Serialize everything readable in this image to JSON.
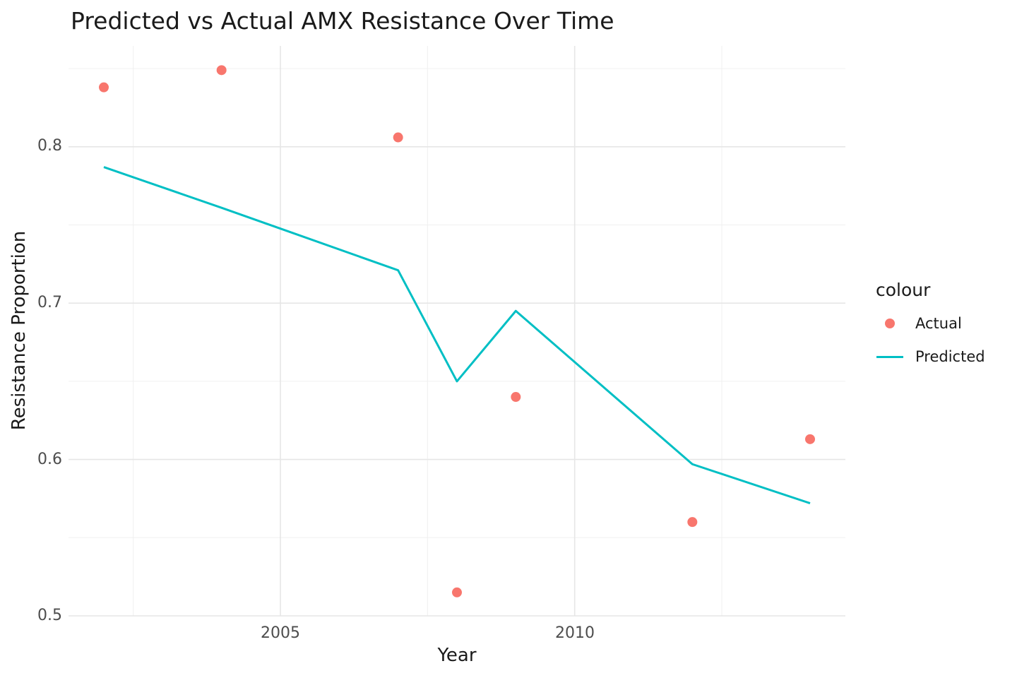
{
  "chart_data": {
    "type": "line",
    "title": "Predicted vs Actual AMX Resistance Over Time",
    "xlabel": "Year",
    "ylabel": "Resistance Proportion",
    "x": [
      2002,
      2004,
      2007,
      2008,
      2009,
      2012,
      2014
    ],
    "series": [
      {
        "name": "Actual",
        "geom": "point",
        "color": "#F8766D",
        "values": [
          0.838,
          0.849,
          0.806,
          0.515,
          0.64,
          0.56,
          0.613
        ]
      },
      {
        "name": "Predicted",
        "geom": "line",
        "color": "#00BFC4",
        "values": [
          0.787,
          0.761,
          0.721,
          0.65,
          0.695,
          0.597,
          0.572
        ]
      }
    ],
    "x_range": [
      2001.4,
      2014.6
    ],
    "y_range": [
      0.5,
      0.8645
    ],
    "x_ticks": {
      "major": [
        2005,
        2010
      ],
      "minor": [
        2002.5,
        2007.5,
        2012.5
      ],
      "labels": [
        "2005",
        "2010"
      ]
    },
    "y_ticks": {
      "major": [
        0.8,
        0.7,
        0.6,
        0.5
      ],
      "minor": [
        0.85,
        0.75,
        0.65,
        0.55
      ],
      "labels": [
        "0.8",
        "0.7",
        "0.6",
        "0.5"
      ]
    },
    "grid": {
      "major_color": "#e6e6e6",
      "minor_color": "#f0f0f0",
      "on": true
    },
    "background": "#ffffff",
    "legend_position": "right"
  },
  "legend": {
    "title": "colour",
    "items": [
      {
        "label": "Actual",
        "key": "point",
        "color": "#F8766D"
      },
      {
        "label": "Predicted",
        "key": "line",
        "color": "#00BFC4"
      }
    ]
  }
}
